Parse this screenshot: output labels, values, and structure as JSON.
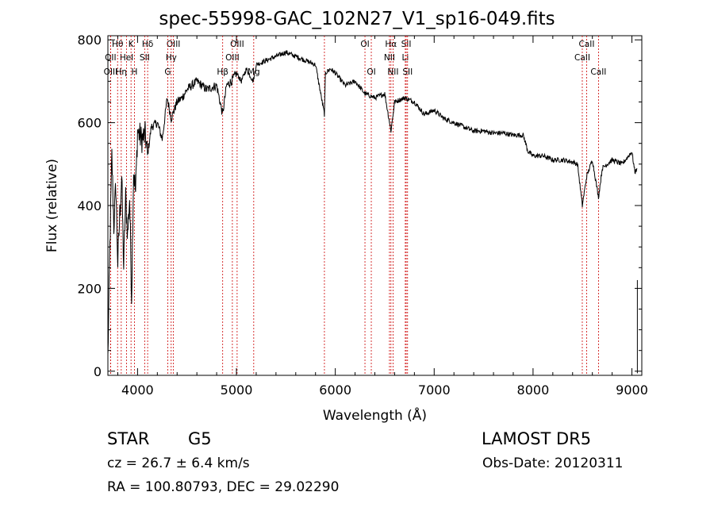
{
  "chart_data": {
    "type": "line",
    "title": "spec-55998-GAC_102N27_V1_sp16-049.fits",
    "xlabel": "Wavelength (Å)",
    "ylabel": "Flux (relative)",
    "xlim": [
      3700,
      9100
    ],
    "ylim": [
      -10,
      810
    ],
    "xticks": [
      4000,
      5000,
      6000,
      7000,
      8000,
      9000
    ],
    "yticks": [
      0,
      200,
      400,
      600,
      800
    ],
    "grid": false,
    "series": [
      {
        "color": "#000000",
        "x": [
          3700,
          3720,
          3740,
          3760,
          3780,
          3800,
          3820,
          3840,
          3860,
          3880,
          3900,
          3920,
          3940,
          3960,
          3980,
          4000,
          4040,
          4080,
          4100,
          4140,
          4200,
          4250,
          4300,
          4340,
          4400,
          4450,
          4500,
          4600,
          4700,
          4800,
          4860,
          4900,
          4950,
          5000,
          5050,
          5100,
          5170,
          5200,
          5300,
          5400,
          5500,
          5600,
          5700,
          5800,
          5890,
          5900,
          5950,
          6000,
          6100,
          6200,
          6300,
          6400,
          6500,
          6563,
          6600,
          6700,
          6800,
          6900,
          7000,
          7100,
          7200,
          7300,
          7400,
          7500,
          7600,
          7700,
          7800,
          7900,
          7950,
          8000,
          8100,
          8200,
          8300,
          8400,
          8450,
          8498,
          8542,
          8600,
          8662,
          8700,
          8800,
          8900,
          9000,
          9030,
          9050
        ],
        "values": [
          30,
          300,
          520,
          350,
          450,
          260,
          380,
          470,
          250,
          420,
          330,
          420,
          180,
          490,
          430,
          580,
          560,
          570,
          520,
          590,
          600,
          560,
          660,
          610,
          650,
          660,
          680,
          700,
          680,
          690,
          620,
          690,
          700,
          720,
          700,
          730,
          700,
          740,
          750,
          760,
          770,
          760,
          750,
          740,
          620,
          720,
          730,
          720,
          690,
          700,
          670,
          660,
          670,
          580,
          650,
          660,
          650,
          620,
          630,
          610,
          600,
          590,
          580,
          580,
          575,
          575,
          570,
          570,
          530,
          520,
          520,
          510,
          510,
          505,
          500,
          400,
          470,
          510,
          420,
          490,
          510,
          500,
          530,
          480,
          490
        ]
      }
    ],
    "lines": [
      {
        "name": "Hθ",
        "x": 3798,
        "row": 0
      },
      {
        "name": "K",
        "x": 3934,
        "row": 0
      },
      {
        "name": "Hδ",
        "x": 4102,
        "row": 0
      },
      {
        "name": "OIII",
        "x": 4363,
        "row": 0
      },
      {
        "name": "OIII",
        "x": 5007,
        "row": 0
      },
      {
        "name": "OI",
        "x": 6300,
        "row": 0
      },
      {
        "name": "Hα",
        "x": 6563,
        "row": 0
      },
      {
        "name": "SII",
        "x": 6717,
        "row": 0
      },
      {
        "name": "CaII",
        "x": 8542,
        "row": 0
      },
      {
        "name": "OII",
        "x": 3727,
        "row": 1
      },
      {
        "name": "HeI",
        "x": 3889,
        "row": 1
      },
      {
        "name": "SII",
        "x": 4072,
        "row": 1
      },
      {
        "name": "Hγ",
        "x": 4340,
        "row": 1
      },
      {
        "name": "OIII",
        "x": 4959,
        "row": 1
      },
      {
        "name": "NII",
        "x": 6548,
        "row": 1
      },
      {
        "name": "Li",
        "x": 6708,
        "row": 1
      },
      {
        "name": "CaII",
        "x": 8498,
        "row": 1
      },
      {
        "name": "OIII",
        "x": 3727,
        "row": 2
      },
      {
        "name": "Hη",
        "x": 3835,
        "row": 2
      },
      {
        "name": "H",
        "x": 3968,
        "row": 2
      },
      {
        "name": "G",
        "x": 4305,
        "row": 2
      },
      {
        "name": "Hβ",
        "x": 4861,
        "row": 2
      },
      {
        "name": "Mg",
        "x": 5175,
        "row": 2
      },
      {
        "name": "OI",
        "x": 6364,
        "row": 2
      },
      {
        "name": "NII",
        "x": 6584,
        "row": 2
      },
      {
        "name": "SII",
        "x": 6731,
        "row": 2
      },
      {
        "name": "CaII",
        "x": 8662,
        "row": 2
      },
      {
        "name": "",
        "x": 5890,
        "row": 3
      }
    ]
  },
  "footer": {
    "class_label": "STAR",
    "subclass": "G5",
    "cz": "cz = 26.7 ± 6.4 km/s",
    "radec": "RA = 100.80793, DEC =  29.02290",
    "survey": "LAMOST DR5",
    "obs_date": "Obs-Date: 20120311"
  },
  "colors": {
    "axis": "#000000",
    "line_marker": "#cc0000",
    "spectrum": "#000000"
  }
}
